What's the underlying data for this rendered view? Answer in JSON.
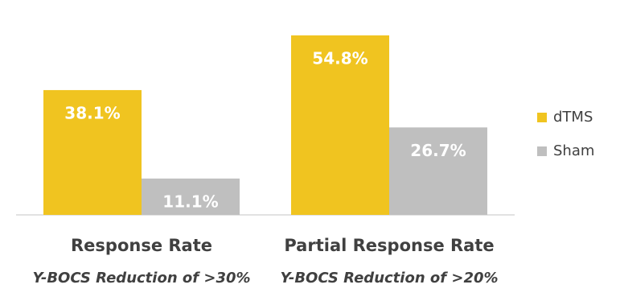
{
  "chart_data": {
    "type": "bar",
    "categories": [
      "Response Rate",
      "Partial Response Rate"
    ],
    "category_notes": [
      "Y-BOCS Reduction of >30%",
      "Y-BOCS Reduction of >20%"
    ],
    "series": [
      {
        "name": "dTMS",
        "color": "#f0c420",
        "values": [
          38.1,
          54.8
        ],
        "value_labels": [
          "38.1%",
          "54.8%"
        ]
      },
      {
        "name": "Sham",
        "color": "#bfbfbf",
        "values": [
          11.1,
          26.7
        ],
        "value_labels": [
          "11.1%",
          "26.7%"
        ]
      }
    ],
    "legend": "right"
  }
}
